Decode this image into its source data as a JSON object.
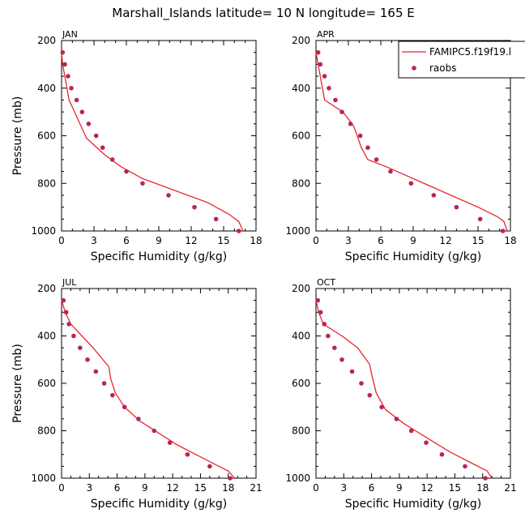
{
  "figure": {
    "title": "Marshall_Islands  latitude= 10 N longitude= 165 E"
  },
  "legend": {
    "model_label": "FAMIPC5.f19f19.l",
    "obs_label": "raobs",
    "model_color": "#e8282b",
    "obs_color": "#b5265a",
    "placement": "top-right of APR panel"
  },
  "chart_data": [
    {
      "type": "line",
      "panel_label": "JAN",
      "xlabel": "Specific Humidity (g/kg)",
      "ylabel": "Pressure (mb)",
      "xlim": [
        0,
        18
      ],
      "ylim": [
        1000,
        200
      ],
      "y_inverted": true,
      "xticks": [
        "0",
        "3",
        "6",
        "9",
        "12",
        "15",
        "18"
      ],
      "yticks": [
        "200",
        "400",
        "600",
        "800",
        "1000"
      ],
      "model_series": {
        "x": [
          0.0,
          0.1,
          0.3,
          0.7,
          1.5,
          2.3,
          4.0,
          5.5,
          7.5,
          10.5,
          13.5,
          15.5,
          16.4,
          16.8
        ],
        "y": [
          250,
          300,
          350,
          450,
          530,
          610,
          680,
          730,
          780,
          830,
          880,
          930,
          960,
          1000
        ]
      },
      "obs_series": {
        "x": [
          0.1,
          0.3,
          0.6,
          0.9,
          1.4,
          1.9,
          2.5,
          3.2,
          3.8,
          4.7,
          6.0,
          7.5,
          9.9,
          12.3,
          14.3,
          16.4
        ],
        "y": [
          250,
          300,
          350,
          400,
          450,
          500,
          550,
          600,
          650,
          700,
          750,
          800,
          850,
          900,
          950,
          1000
        ]
      }
    },
    {
      "type": "line",
      "panel_label": "APR",
      "xlabel": "Specific Humidity (g/kg)",
      "ylabel": "",
      "xlim": [
        0,
        18
      ],
      "ylim": [
        1000,
        200
      ],
      "y_inverted": true,
      "xticks": [
        "0",
        "3",
        "6",
        "9",
        "12",
        "15",
        "18"
      ],
      "yticks": [
        "200",
        "400",
        "600",
        "800",
        "1000"
      ],
      "model_series": {
        "x": [
          0.0,
          0.2,
          0.4,
          0.8,
          2.5,
          3.0,
          3.5,
          4.2,
          4.8,
          6.5,
          9.0,
          12.0,
          15.0,
          16.8,
          17.4,
          17.7
        ],
        "y": [
          250,
          300,
          350,
          450,
          500,
          530,
          560,
          650,
          700,
          730,
          780,
          840,
          900,
          940,
          960,
          1000
        ]
      },
      "obs_series": {
        "x": [
          0.2,
          0.4,
          0.8,
          1.2,
          1.8,
          2.4,
          3.2,
          4.1,
          4.8,
          5.6,
          6.9,
          8.8,
          10.9,
          13.0,
          15.2,
          17.3
        ],
        "y": [
          250,
          300,
          350,
          400,
          450,
          500,
          550,
          600,
          650,
          700,
          750,
          800,
          850,
          900,
          950,
          1000
        ]
      }
    },
    {
      "type": "line",
      "panel_label": "JUL",
      "xlabel": "Specific Humidity (g/kg)",
      "ylabel": "Pressure (mb)",
      "xlim": [
        0,
        21
      ],
      "ylim": [
        1000,
        200
      ],
      "y_inverted": true,
      "xticks": [
        "0",
        "3",
        "6",
        "9",
        "12",
        "15",
        "18",
        "21"
      ],
      "yticks": [
        "200",
        "400",
        "600",
        "800",
        "1000"
      ],
      "model_series": {
        "x": [
          0.0,
          0.4,
          1.0,
          2.2,
          3.4,
          5.1,
          5.3,
          5.8,
          6.8,
          8.5,
          10.5,
          12.5,
          15.0,
          17.0,
          18.0,
          18.7
        ],
        "y": [
          250,
          300,
          350,
          400,
          450,
          530,
          580,
          640,
          700,
          760,
          810,
          860,
          910,
          950,
          970,
          1000
        ]
      },
      "obs_series": {
        "x": [
          0.2,
          0.5,
          0.8,
          1.3,
          2.0,
          2.8,
          3.7,
          4.6,
          5.5,
          6.8,
          8.3,
          10.0,
          11.7,
          13.6,
          16.0,
          18.2
        ],
        "y": [
          250,
          300,
          350,
          400,
          450,
          500,
          550,
          600,
          650,
          700,
          750,
          800,
          850,
          900,
          950,
          1000
        ]
      }
    },
    {
      "type": "line",
      "panel_label": "OCT",
      "xlabel": "Specific Humidity (g/kg)",
      "ylabel": "",
      "xlim": [
        0,
        21
      ],
      "ylim": [
        1000,
        200
      ],
      "y_inverted": true,
      "xticks": [
        "0",
        "3",
        "6",
        "9",
        "12",
        "15",
        "18",
        "21"
      ],
      "yticks": [
        "200",
        "400",
        "600",
        "800",
        "1000"
      ],
      "model_series": {
        "x": [
          0.0,
          0.3,
          0.8,
          2.8,
          4.5,
          5.8,
          6.0,
          6.5,
          7.5,
          9.5,
          12.0,
          14.5,
          17.0,
          18.5,
          19.0
        ],
        "y": [
          250,
          300,
          350,
          400,
          450,
          520,
          560,
          640,
          710,
          770,
          830,
          890,
          940,
          970,
          1000
        ]
      },
      "obs_series": {
        "x": [
          0.2,
          0.5,
          0.9,
          1.3,
          2.0,
          2.8,
          3.9,
          4.9,
          5.8,
          7.1,
          8.7,
          10.3,
          11.9,
          13.6,
          16.1,
          18.3
        ],
        "y": [
          250,
          300,
          350,
          400,
          450,
          500,
          550,
          600,
          650,
          700,
          750,
          800,
          850,
          900,
          950,
          1000
        ]
      }
    }
  ]
}
